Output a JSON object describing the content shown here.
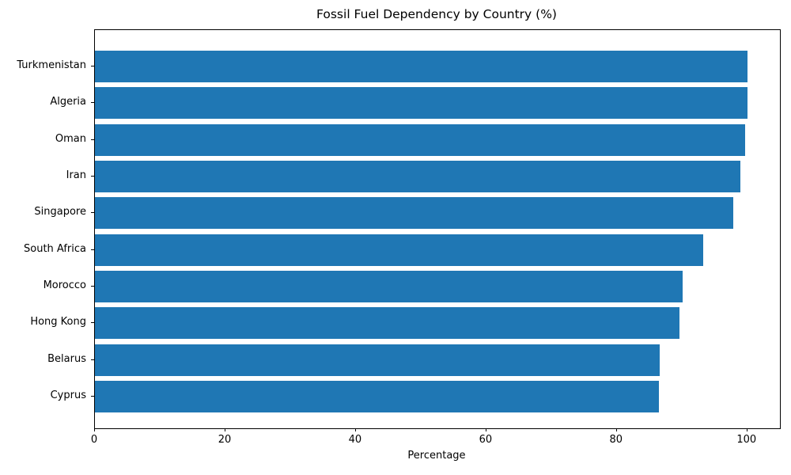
{
  "chart_data": {
    "type": "bar",
    "orientation": "horizontal",
    "title": "Fossil Fuel Dependency by Country (%)",
    "xlabel": "Percentage",
    "ylabel": "",
    "categories": [
      "Turkmenistan",
      "Algeria",
      "Oman",
      "Iran",
      "Singapore",
      "South Africa",
      "Morocco",
      "Hong Kong",
      "Belarus",
      "Cyprus"
    ],
    "values": [
      100.0,
      100.0,
      99.6,
      98.9,
      97.8,
      93.2,
      90.1,
      89.6,
      86.6,
      86.4
    ],
    "xlim": [
      0,
      105
    ],
    "xticks": [
      0,
      20,
      40,
      60,
      80,
      100
    ],
    "bar_color": "#1f77b4",
    "spine_color": "#000000",
    "text_color": "#000000",
    "grid": false,
    "legend": false
  }
}
